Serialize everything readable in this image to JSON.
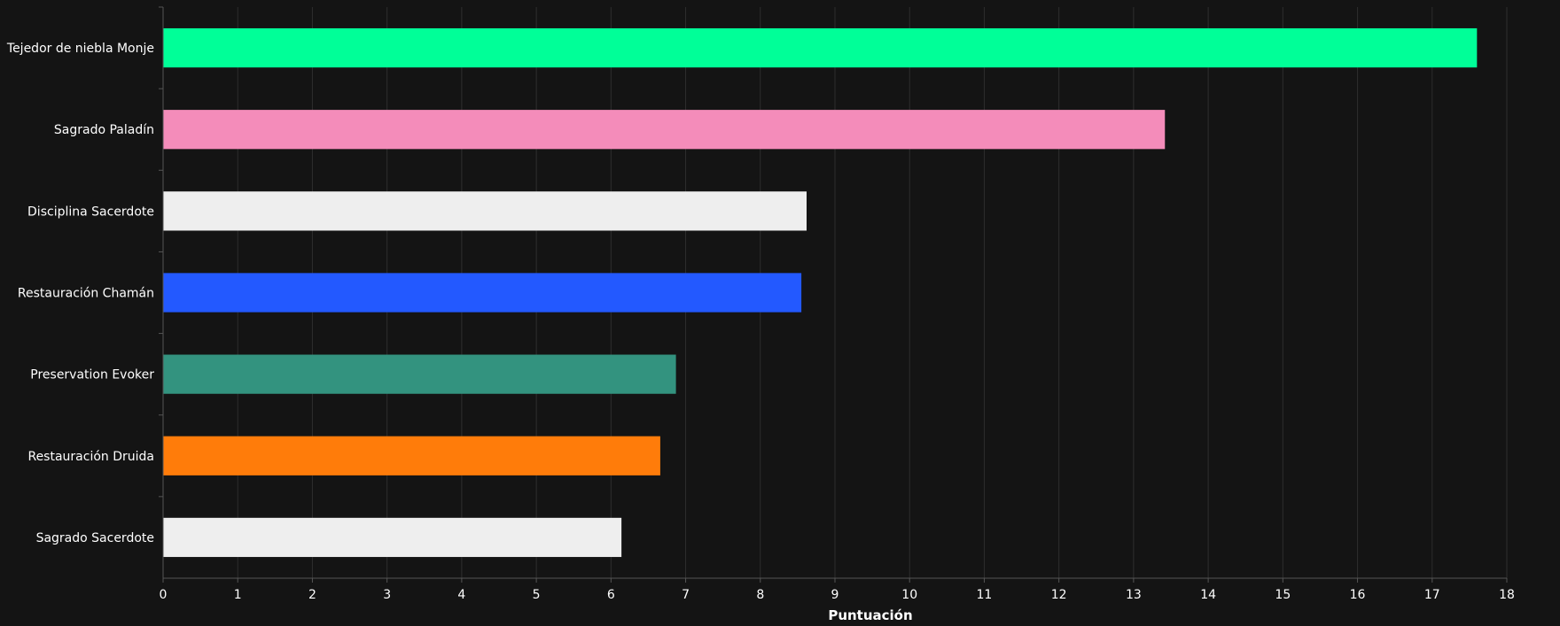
{
  "chart_data": {
    "type": "bar",
    "orientation": "horizontal",
    "categories": [
      "Tejedor de niebla Monje",
      "Sagrado Paladín",
      "Disciplina Sacerdote",
      "Restauración Chamán",
      "Preservation Evoker",
      "Restauración Druida",
      "Sagrado Sacerdote"
    ],
    "values": [
      17.6,
      13.42,
      8.62,
      8.55,
      6.87,
      6.66,
      6.14
    ],
    "colors": [
      "#00ff98",
      "#f48cba",
      "#eeeeee",
      "#2359ff",
      "#33937f",
      "#ff7c0a",
      "#eeeeee"
    ],
    "xlabel": "Puntuación",
    "ylabel": "",
    "title": "",
    "xlim": [
      0,
      18
    ],
    "xticks": [
      0,
      1,
      2,
      3,
      4,
      5,
      6,
      7,
      8,
      9,
      10,
      11,
      12,
      13,
      14,
      15,
      16,
      17,
      18
    ],
    "grid": "vertical",
    "background": "#141414",
    "gridColor": "#2e2e2e",
    "axisColor": "#555555"
  }
}
